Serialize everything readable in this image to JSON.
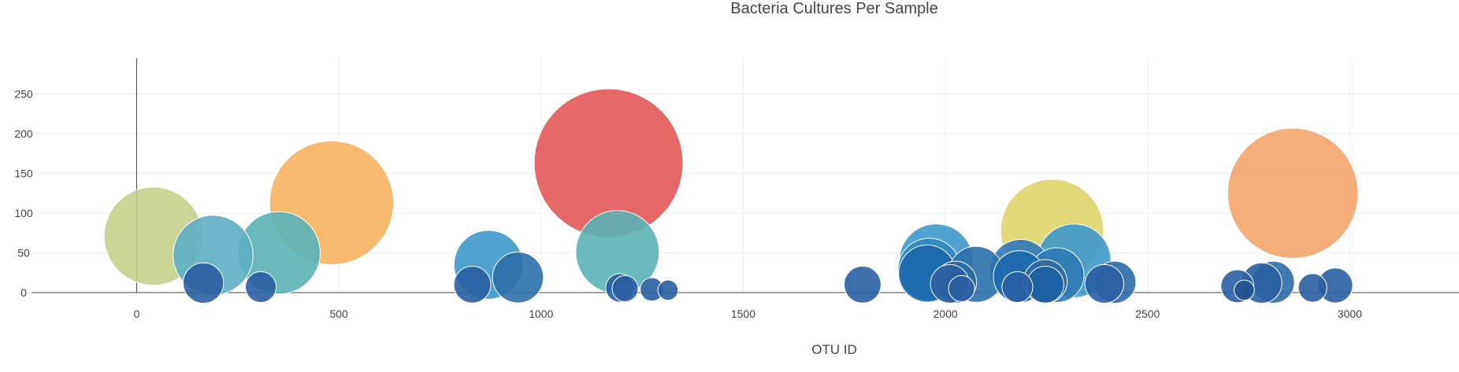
{
  "chart_data": {
    "type": "scatter",
    "title": "Bacteria Cultures Per Sample",
    "xlabel": "OTU ID",
    "ylabel": "",
    "xlim": [
      -260,
      3270
    ],
    "ylim": [
      0,
      295
    ],
    "x_ticks": [
      0,
      500,
      1000,
      1500,
      2000,
      2500,
      3000
    ],
    "y_ticks": [
      0,
      50,
      100,
      150,
      200,
      250
    ],
    "grid": true,
    "legend": "none",
    "color_scale": "Earth",
    "series": [
      {
        "marker_size_equals_y": true,
        "points": [
          {
            "x": 41,
            "y": 71,
            "color": "#c4cf89"
          },
          {
            "x": 189,
            "y": 47,
            "color": "#5eafc5"
          },
          {
            "x": 352,
            "y": 50,
            "color": "#5ab1b6"
          },
          {
            "x": 482,
            "y": 113,
            "color": "#f6b35f"
          },
          {
            "x": 870,
            "y": 35,
            "color": "#3d99ca"
          },
          {
            "x": 1167,
            "y": 163,
            "color": "#e35757"
          },
          {
            "x": 1189,
            "y": 51,
            "color": "#5ab1b6"
          },
          {
            "x": 943,
            "y": 19,
            "color": "#2b6fab"
          },
          {
            "x": 165,
            "y": 12,
            "color": "#2a5ea3"
          },
          {
            "x": 307,
            "y": 7,
            "color": "#2a5ea3"
          },
          {
            "x": 830,
            "y": 10,
            "color": "#2a5ea3"
          },
          {
            "x": 1195,
            "y": 6,
            "color": "#2a5ea3"
          },
          {
            "x": 1208,
            "y": 5,
            "color": "#2a5ea3"
          },
          {
            "x": 1274,
            "y": 4,
            "color": "#2a5ea3"
          },
          {
            "x": 1314,
            "y": 3,
            "color": "#2a5ea3"
          },
          {
            "x": 1795,
            "y": 10,
            "color": "#2a5ea3"
          },
          {
            "x": 1977,
            "y": 40,
            "color": "#3d99ca"
          },
          {
            "x": 1960,
            "y": 29,
            "color": "#2f88bf"
          },
          {
            "x": 1955,
            "y": 24,
            "color": "#1b68ad"
          },
          {
            "x": 2011,
            "y": 11,
            "color": "#2a5ea3"
          },
          {
            "x": 2025,
            "y": 13,
            "color": "#2e6ca6"
          },
          {
            "x": 2040,
            "y": 5,
            "color": "#2a5ea3"
          },
          {
            "x": 2076,
            "y": 23,
            "color": "#2b6fab"
          },
          {
            "x": 2178,
            "y": 7,
            "color": "#2a5ea3"
          },
          {
            "x": 2186,
            "y": 28,
            "color": "#2f7ab6"
          },
          {
            "x": 2183,
            "y": 20,
            "color": "#1b68ad"
          },
          {
            "x": 2247,
            "y": 14,
            "color": "#2e6ca6"
          },
          {
            "x": 2247,
            "y": 10,
            "color": "#1b5fa2"
          },
          {
            "x": 2264,
            "y": 78,
            "color": "#e0d46c"
          },
          {
            "x": 2275,
            "y": 22,
            "color": "#2f7ab6"
          },
          {
            "x": 2318,
            "y": 40,
            "color": "#3d99ca"
          },
          {
            "x": 2393,
            "y": 11,
            "color": "#2a5ea3"
          },
          {
            "x": 2419,
            "y": 13,
            "color": "#2e6ca6"
          },
          {
            "x": 2722,
            "y": 8,
            "color": "#2a5ea3"
          },
          {
            "x": 2739,
            "y": 3,
            "color": "#24528f"
          },
          {
            "x": 2782,
            "y": 12,
            "color": "#2a5ea3"
          },
          {
            "x": 2811,
            "y": 13,
            "color": "#2e6ca6"
          },
          {
            "x": 2859,
            "y": 125,
            "color": "#f4a56b"
          },
          {
            "x": 2908,
            "y": 6,
            "color": "#2a5ea3"
          },
          {
            "x": 2964,
            "y": 9,
            "color": "#2a5ea3"
          }
        ]
      }
    ]
  }
}
